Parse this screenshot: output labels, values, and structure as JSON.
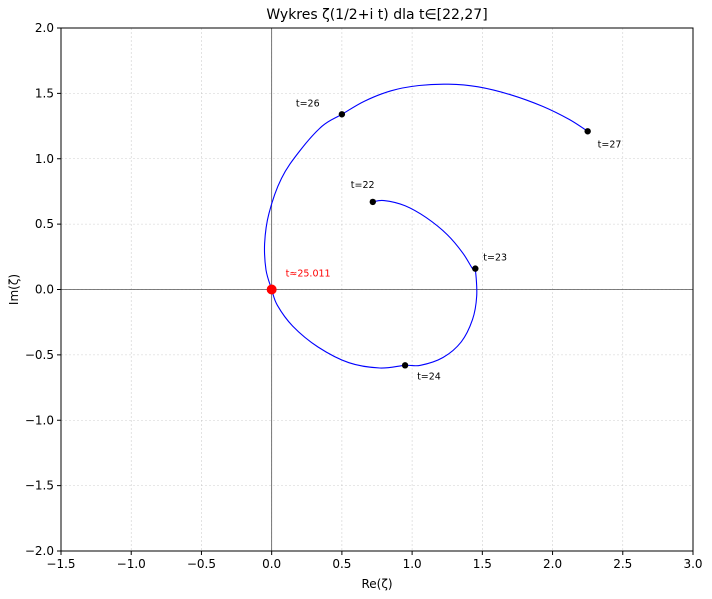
{
  "chart_data": {
    "type": "line",
    "title": "Wykres ζ(1/2+i t) dla t∈[22,27]",
    "xlabel": "Re(ζ)",
    "ylabel": "Im(ζ)",
    "xlim": [
      -1.5,
      3.0
    ],
    "ylim": [
      -2.0,
      2.0
    ],
    "xticks": [
      -1.5,
      -1.0,
      -0.5,
      0.0,
      0.5,
      1.0,
      1.5,
      2.0,
      2.5,
      3.0
    ],
    "xtick_labels": [
      "−1.5",
      "−1.0",
      "−0.5",
      "0.0",
      "0.5",
      "1.0",
      "1.5",
      "2.0",
      "2.5",
      "3.0"
    ],
    "yticks": [
      -2.0,
      -1.5,
      -1.0,
      -0.5,
      0.0,
      0.5,
      1.0,
      1.5,
      2.0
    ],
    "ytick_labels": [
      "−2.0",
      "−1.5",
      "−1.0",
      "−0.5",
      "0.0",
      "0.5",
      "1.0",
      "1.5",
      "2.0"
    ],
    "grid": true,
    "series": [
      {
        "color": "#0000ff",
        "x": [
          0.72,
          0.8,
          0.95,
          1.1,
          1.25,
          1.36,
          1.43,
          1.45,
          1.46,
          1.43,
          1.35,
          1.22,
          1.06,
          0.95,
          0.77,
          0.55,
          0.33,
          0.15,
          0.04,
          0.0,
          -0.04,
          -0.05,
          -0.02,
          0.07,
          0.2,
          0.36,
          0.5,
          0.66,
          0.85,
          1.05,
          1.26,
          1.47,
          1.7,
          1.93,
          2.12,
          2.25
        ],
        "y": [
          0.67,
          0.68,
          0.64,
          0.55,
          0.42,
          0.28,
          0.16,
          0.15,
          -0.05,
          -0.23,
          -0.4,
          -0.52,
          -0.58,
          -0.58,
          -0.6,
          -0.56,
          -0.44,
          -0.28,
          -0.12,
          0.0,
          0.15,
          0.35,
          0.58,
          0.85,
          1.06,
          1.25,
          1.34,
          1.44,
          1.52,
          1.56,
          1.57,
          1.55,
          1.49,
          1.4,
          1.3,
          1.21
        ]
      }
    ],
    "points": [
      {
        "label": "t=22",
        "x": 0.72,
        "y": 0.67,
        "color": "#000000"
      },
      {
        "label": "t=23",
        "x": 1.45,
        "y": 0.16,
        "color": "#000000"
      },
      {
        "label": "t=24",
        "x": 0.95,
        "y": -0.58,
        "color": "#000000"
      },
      {
        "label": "t=26",
        "x": 0.5,
        "y": 1.34,
        "color": "#000000"
      },
      {
        "label": "t=27",
        "x": 2.25,
        "y": 1.21,
        "color": "#000000"
      }
    ],
    "zero": {
      "label": "t≈25.011",
      "x": 0.0,
      "y": 0.0,
      "color": "#ff0000"
    }
  }
}
